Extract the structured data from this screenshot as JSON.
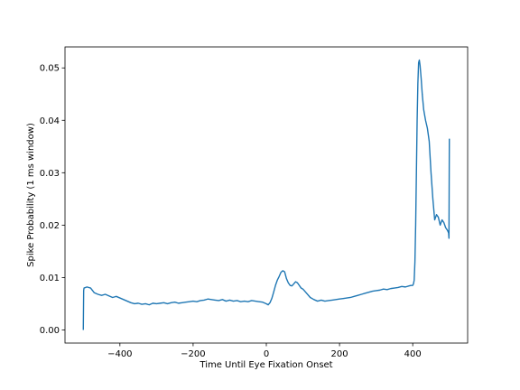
{
  "chart_data": {
    "type": "line",
    "title": "",
    "xlabel": "Time Until Eye Fixation Onset",
    "ylabel": "Spike Probability (1 ms window)",
    "xlim": [
      -550,
      550
    ],
    "ylim": [
      -0.0025,
      0.054
    ],
    "xticks": [
      -400,
      -200,
      0,
      200,
      400
    ],
    "xtick_labels": [
      "−400",
      "−200",
      "0",
      "200",
      "400"
    ],
    "yticks": [
      0.0,
      0.01,
      0.02,
      0.03,
      0.04,
      0.05
    ],
    "ytick_labels": [
      "0.00",
      "0.01",
      "0.02",
      "0.03",
      "0.04",
      "0.05"
    ],
    "grid": false,
    "legend": "none",
    "series_color": "#1f77b4",
    "series": [
      {
        "x": [
          -500,
          -499,
          -498,
          -490,
          -480,
          -470,
          -460,
          -450,
          -440,
          -430,
          -420,
          -410,
          -400,
          -390,
          -380,
          -370,
          -360,
          -350,
          -340,
          -330,
          -320,
          -310,
          -300,
          -290,
          -280,
          -270,
          -260,
          -250,
          -240,
          -230,
          -220,
          -210,
          -200,
          -190,
          -180,
          -170,
          -160,
          -150,
          -140,
          -130,
          -120,
          -110,
          -100,
          -90,
          -80,
          -70,
          -60,
          -50,
          -40,
          -30,
          -20,
          -10,
          0,
          5,
          10,
          15,
          20,
          25,
          30,
          35,
          40,
          45,
          50,
          55,
          60,
          65,
          70,
          75,
          80,
          85,
          90,
          95,
          100,
          110,
          120,
          130,
          140,
          150,
          160,
          170,
          180,
          190,
          200,
          210,
          220,
          230,
          240,
          250,
          260,
          270,
          280,
          290,
          300,
          310,
          320,
          330,
          340,
          350,
          360,
          370,
          380,
          390,
          395,
          400,
          402,
          404,
          406,
          408,
          410,
          412,
          414,
          416,
          418,
          420,
          423,
          426,
          430,
          435,
          440,
          445,
          450,
          455,
          460,
          465,
          470,
          475,
          480,
          485,
          490,
          495,
          498,
          499,
          500
        ],
        "y": [
          0.0,
          0.0075,
          0.008,
          0.0082,
          0.008,
          0.0071,
          0.0068,
          0.0066,
          0.0068,
          0.0065,
          0.0062,
          0.0064,
          0.0061,
          0.0058,
          0.0055,
          0.0052,
          0.005,
          0.0051,
          0.0049,
          0.005,
          0.0048,
          0.0051,
          0.005,
          0.0051,
          0.0052,
          0.005,
          0.0052,
          0.0053,
          0.0051,
          0.0052,
          0.0053,
          0.0054,
          0.0055,
          0.0054,
          0.0056,
          0.0057,
          0.0059,
          0.0058,
          0.0057,
          0.0056,
          0.0058,
          0.0055,
          0.0057,
          0.0055,
          0.0056,
          0.0054,
          0.0055,
          0.0054,
          0.0056,
          0.0055,
          0.0054,
          0.0053,
          0.005,
          0.0048,
          0.0052,
          0.006,
          0.0072,
          0.0085,
          0.0095,
          0.0102,
          0.011,
          0.0113,
          0.0111,
          0.0098,
          0.009,
          0.0085,
          0.0084,
          0.0088,
          0.0092,
          0.009,
          0.0085,
          0.008,
          0.0078,
          0.007,
          0.0062,
          0.0058,
          0.0055,
          0.0057,
          0.0055,
          0.0056,
          0.0057,
          0.0058,
          0.0059,
          0.006,
          0.0061,
          0.0062,
          0.0064,
          0.0066,
          0.0068,
          0.007,
          0.0072,
          0.0074,
          0.0075,
          0.0076,
          0.0078,
          0.0077,
          0.0079,
          0.008,
          0.0081,
          0.0083,
          0.0082,
          0.0084,
          0.0085,
          0.0085,
          0.0088,
          0.0095,
          0.013,
          0.02,
          0.03,
          0.04,
          0.047,
          0.051,
          0.0515,
          0.0505,
          0.048,
          0.045,
          0.042,
          0.04,
          0.0385,
          0.036,
          0.03,
          0.025,
          0.021,
          0.022,
          0.0215,
          0.02,
          0.021,
          0.0205,
          0.0195,
          0.019,
          0.0185,
          0.0175,
          0.0365
        ]
      }
    ]
  }
}
